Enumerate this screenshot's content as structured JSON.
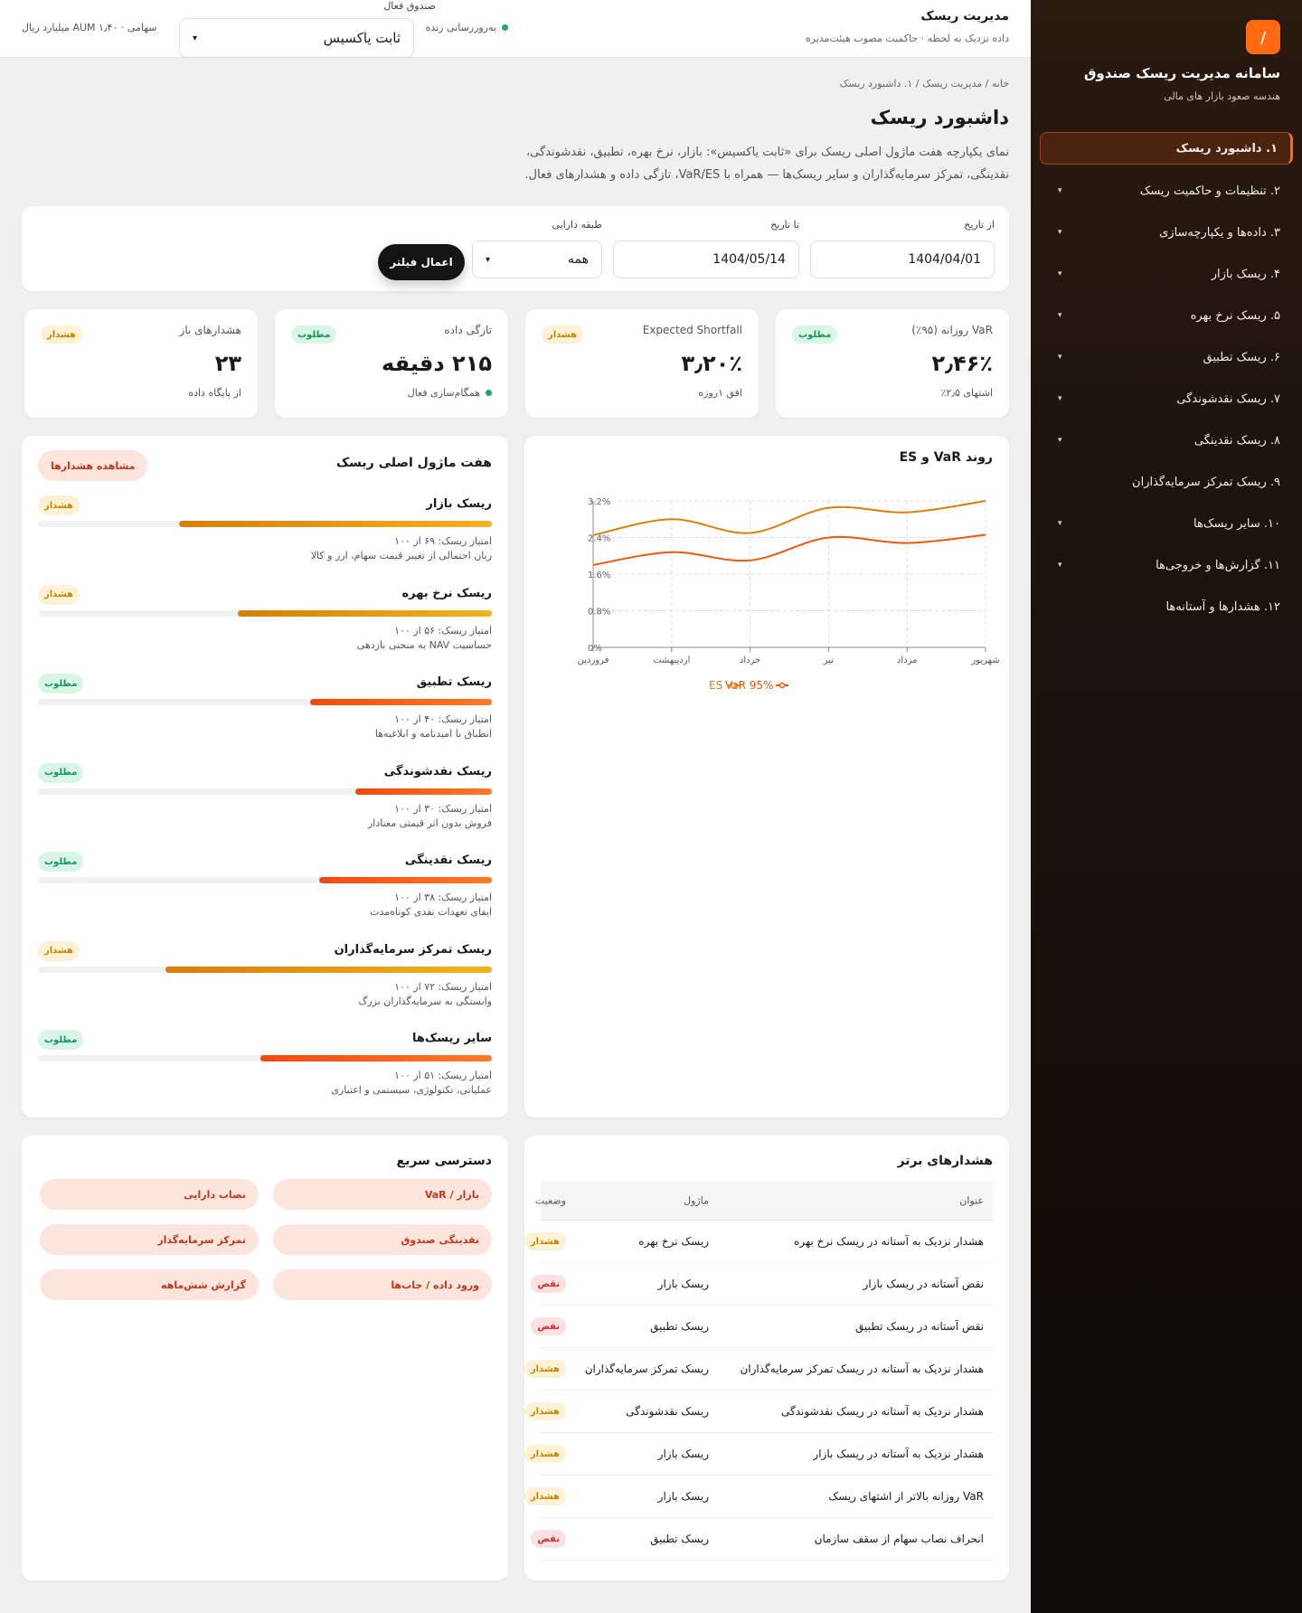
{
  "sidebar": {
    "logo": "/",
    "title": "سامانه مدیریت ریسک صندوق",
    "subtitle": "هندسه صعود بازار های مالی",
    "items": [
      {
        "label": "۱. داشبورد ریسک"
      },
      {
        "label": "۲. تنظیمات و حاکمیت ریسک"
      },
      {
        "label": "۳. داده‌ها و یکپارچه‌سازی"
      },
      {
        "label": "۴. ریسک بازار"
      },
      {
        "label": "۵. ریسک نرخ بهره"
      },
      {
        "label": "۶. ریسک تطبیق"
      },
      {
        "label": "۷. ریسک نقدشوندگی"
      },
      {
        "label": "۸. ریسک نقدینگی"
      },
      {
        "label": "۹. ریسک تمرکز سرمایه‌گذاران"
      },
      {
        "label": "۱۰. سایر ریسک‌ها"
      },
      {
        "label": "۱۱. گزارش‌ها و خروجی‌ها"
      },
      {
        "label": "۱۲. هشدارها و آستانه‌ها"
      }
    ],
    "chevron": "▾"
  },
  "topbar": {
    "title": "مدیریت ریسک",
    "subtitle": "داده نزدیک به لحظه · حاکمیت مصوب هیئت‌مدیره",
    "live": "به‌روزرسانی زنده",
    "fund_label": "صندوق فعال",
    "fund_value": "ثابت یاکسیس",
    "fund_meta": "سهامی · AUM ۱٫۴۰ میلیارد ریال"
  },
  "page": {
    "breadcrumb": "خانه  /  مدیریت ریسک  /  ۱. داشبورد ریسک",
    "title": "داشبورد ریسک",
    "description": "نمای یکپارچه هفت ماژول اصلی ریسک برای «ثابت یاکسیس»: بازار، نرخ بهره، تطبیق، نقدشوندگی، نقدینگی، تمرکز سرمایه‌گذاران و سایر ریسک‌ها — همراه با VaR/ES، تازگی داده و هشدارهای فعال."
  },
  "filters": {
    "from_label": "از تاریخ",
    "from_value": "1404/04/01",
    "to_label": "تا تاریخ",
    "to_value": "1404/05/14",
    "class_label": "طبقه دارایی",
    "class_value": "همه",
    "apply": "اعمال فیلتر"
  },
  "kpis": [
    {
      "title": "VaR روزانه (۹۵٪)",
      "value": "۲٫۴۶٪",
      "note": "اشتهای ۲٫۵٪",
      "badge": "مطلوب"
    },
    {
      "title": "Expected Shortfall",
      "value": "۳٫۲۰٪",
      "note": "افق ۱روزه",
      "badge": "هشدار"
    },
    {
      "title": "تازگی داده",
      "value": "۲۱۵ دقیقه",
      "note": "همگام‌سازی فعال",
      "badge": "مطلوب"
    },
    {
      "title": "هشدارهای باز",
      "value": "۲۳",
      "note": "از پایگاه داده",
      "badge": "هشدار"
    }
  ],
  "chart_data": {
    "type": "line",
    "title": "روند VaR و ES",
    "categories": [
      "فروردین",
      "اردیبهشت",
      "خرداد",
      "تیر",
      "مرداد",
      "شهریور"
    ],
    "y_ticks": [
      "0%",
      "0.8%",
      "1.6%",
      "2.4%",
      "3.2%"
    ],
    "ylim": [
      0,
      3.2
    ],
    "grid": true,
    "legend": "bottom",
    "series": [
      {
        "name": "VaR 95%",
        "values": [
          1.8,
          2.08,
          1.9,
          2.4,
          2.28,
          2.46
        ],
        "color": "#f2560c"
      },
      {
        "name": "ES",
        "values": [
          2.45,
          2.8,
          2.5,
          3.05,
          2.95,
          3.2
        ],
        "color": "#dc7f0a"
      }
    ]
  },
  "modules": {
    "title": "هفت ماژول اصلی ریسک",
    "view_alerts": "مشاهده هشدارها",
    "items": [
      {
        "name": "ریسک بازار",
        "badge": "هشدار",
        "status": "warn",
        "score": "امتیاز ریسک: ۶۹ از ۱۰۰",
        "desc": "زیان احتمالی از تغییر قیمت سهام، ارز و کالا",
        "value": 69
      },
      {
        "name": "ریسک نرخ بهره",
        "badge": "هشدار",
        "status": "warn",
        "score": "امتیاز ریسک: ۵۶ از ۱۰۰",
        "desc": "حساسیت NAV به منحنی بازدهی",
        "value": 56
      },
      {
        "name": "ریسک تطبیق",
        "badge": "مطلوب",
        "status": "ok",
        "score": "امتیاز ریسک: ۴۰ از ۱۰۰",
        "desc": "انطباق با امیدنامه و ابلاغیه‌ها",
        "value": 40
      },
      {
        "name": "ریسک نقدشوندگی",
        "badge": "مطلوب",
        "status": "ok",
        "score": "امتیاز ریسک: ۳۰ از ۱۰۰",
        "desc": "فروش بدون اثر قیمتی معنادار",
        "value": 30
      },
      {
        "name": "ریسک نقدینگی",
        "badge": "مطلوب",
        "status": "ok",
        "score": "امتیاز ریسک: ۳۸ از ۱۰۰",
        "desc": "ایفای تعهدات نقدی کوتاه‌مدت",
        "value": 38
      },
      {
        "name": "ریسک تمرکز سرمایه‌گذاران",
        "badge": "هشدار",
        "status": "warn",
        "score": "امتیاز ریسک: ۷۲ از ۱۰۰",
        "desc": "وابستگی به سرمایه‌گذاران بزرگ",
        "value": 72
      },
      {
        "name": "سایر ریسک‌ها",
        "badge": "مطلوب",
        "status": "ok",
        "score": "امتیاز ریسک: ۵۱ از ۱۰۰",
        "desc": "عملیاتی، تکنولوژی، سیستمی و اعتباری",
        "value": 51
      }
    ]
  },
  "alerts": {
    "title": "هشدارهای برتر",
    "headers": {
      "title": "عنوان",
      "module": "ماژول",
      "status": "وضعیت"
    },
    "rows": [
      {
        "title": "هشدار نزدیک به آستانه در ریسک نرخ بهره",
        "module": "ریسک نرخ بهره",
        "status": "هشدار",
        "kind": "warn"
      },
      {
        "title": "نقض آستانه در ریسک بازار",
        "module": "ریسک بازار",
        "status": "نقض",
        "kind": "bad"
      },
      {
        "title": "نقض آستانه در ریسک تطبیق",
        "module": "ریسک تطبیق",
        "status": "نقض",
        "kind": "bad"
      },
      {
        "title": "هشدار نزدیک به آستانه در ریسک تمرکز سرمایه‌گذاران",
        "module": "ریسک تمرکز سرمایه‌گذاران",
        "status": "هشدار",
        "kind": "warn"
      },
      {
        "title": "هشدار نزدیک به آستانه در ریسک نقدشوندگی",
        "module": "ریسک نقدشوندگی",
        "status": "هشدار",
        "kind": "warn"
      },
      {
        "title": "هشدار نزدیک به آستانه در ریسک بازار",
        "module": "ریسک بازار",
        "status": "هشدار",
        "kind": "warn"
      },
      {
        "title": "VaR روزانه بالاتر از اشتهای ریسک",
        "module": "ریسک بازار",
        "status": "هشدار",
        "kind": "warn"
      },
      {
        "title": "انحراف نصاب سهام از سقف سازمان",
        "module": "ریسک تطبیق",
        "status": "نقض",
        "kind": "bad"
      }
    ]
  },
  "quick": {
    "title": "دسترسی سریع",
    "buttons": [
      {
        "label": "بازار / VaR"
      },
      {
        "label": "نصاب دارایی"
      },
      {
        "label": "نقدینگی صندوق"
      },
      {
        "label": "تمرکز سرمایه‌گذار"
      },
      {
        "label": "ورود داده / جاب‌ها"
      },
      {
        "label": "گزارش شش‌ماهه"
      }
    ]
  },
  "colors": {
    "accent": "#ff6a13",
    "warn": "#c88600",
    "ok": "#15985c",
    "bad": "#d42a2a"
  }
}
